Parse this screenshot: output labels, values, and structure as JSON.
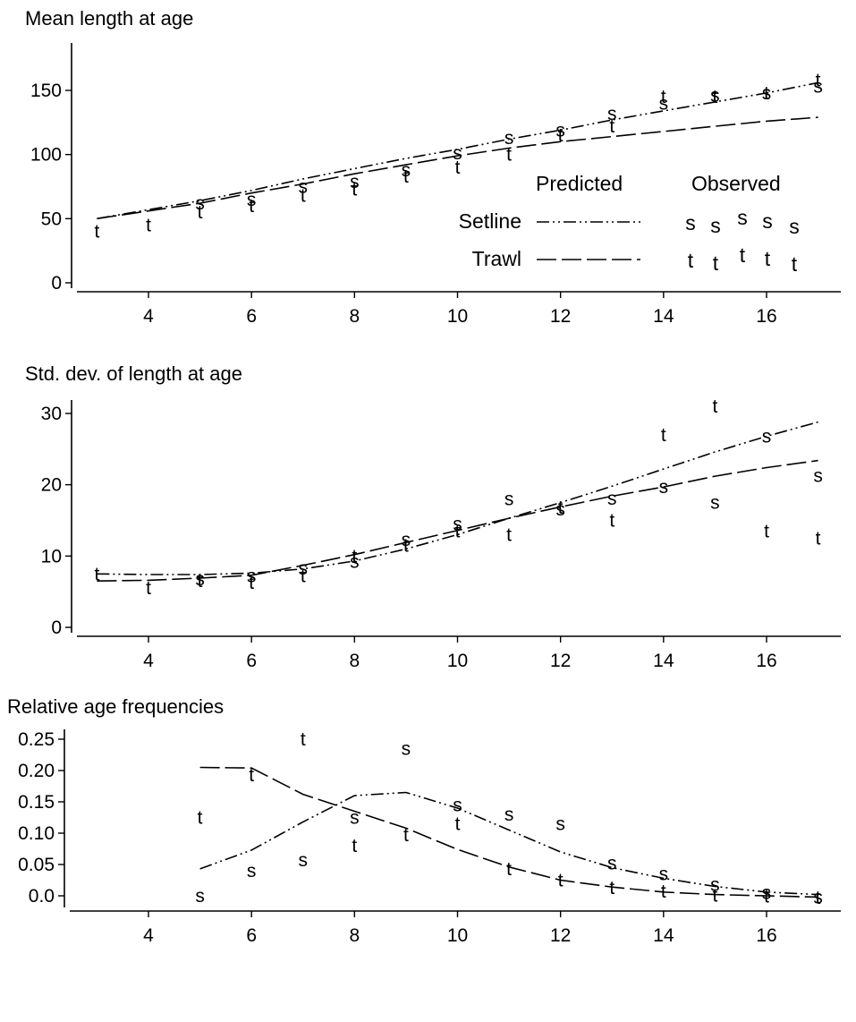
{
  "chart_data": [
    {
      "type": "line",
      "title": "Mean length at age",
      "xlabel": "",
      "ylabel": "",
      "xlim": [
        2.8,
        17.4
      ],
      "ylim": [
        0,
        180
      ],
      "xticks": [
        4,
        6,
        8,
        10,
        12,
        14,
        16
      ],
      "yticks": [
        0,
        50,
        100,
        150
      ],
      "grid": false,
      "legend": {
        "placement": "inside-right",
        "predicted_header": "Predicted",
        "observed_header": "Observed",
        "rows": [
          {
            "name": "Setline",
            "marker": "s"
          },
          {
            "name": "Trawl",
            "marker": "t"
          }
        ]
      },
      "series": [
        {
          "name": "Setline",
          "kind": "predicted",
          "style": "dash-dot",
          "x": [
            3,
            4,
            5,
            6,
            7,
            8,
            9,
            10,
            11,
            12,
            13,
            14,
            15,
            16,
            17
          ],
          "values": [
            50,
            57,
            64,
            72,
            81,
            89,
            97,
            104,
            112,
            119,
            127,
            134,
            141,
            148,
            156
          ]
        },
        {
          "name": "Trawl",
          "kind": "predicted",
          "style": "long-dash",
          "x": [
            3,
            4,
            5,
            6,
            7,
            8,
            9,
            10,
            11,
            12,
            13,
            14,
            15,
            16,
            17
          ],
          "values": [
            50,
            56,
            62,
            70,
            77,
            85,
            92,
            99,
            105,
            110,
            114,
            118,
            122,
            126,
            129
          ]
        },
        {
          "name": "Setline",
          "kind": "observed",
          "marker": "s",
          "x": [
            5,
            6,
            7,
            8,
            9,
            10,
            11,
            12,
            13,
            14,
            15,
            16,
            17
          ],
          "values": [
            62,
            65,
            75,
            79,
            88,
            101,
            113,
            119,
            132,
            140,
            146,
            148,
            153
          ]
        },
        {
          "name": "Trawl",
          "kind": "observed",
          "marker": "t",
          "x": [
            3,
            4,
            5,
            6,
            7,
            8,
            9,
            10,
            11,
            12,
            13,
            14,
            15,
            16,
            17
          ],
          "values": [
            40,
            45,
            55,
            60,
            68,
            73,
            83,
            90,
            100,
            115,
            122,
            145,
            145,
            148,
            158
          ]
        }
      ]
    },
    {
      "type": "line",
      "title": "Std. dev. of length at age",
      "xlabel": "",
      "ylabel": "",
      "xlim": [
        2.8,
        17.4
      ],
      "ylim": [
        0,
        32
      ],
      "xticks": [
        4,
        6,
        8,
        10,
        12,
        14,
        16
      ],
      "yticks": [
        0,
        10,
        20,
        30
      ],
      "grid": false,
      "series": [
        {
          "name": "Setline",
          "kind": "predicted",
          "style": "dash-dot",
          "x": [
            3,
            4,
            5,
            6,
            7,
            8,
            9,
            10,
            11,
            12,
            13,
            14,
            15,
            16,
            17
          ],
          "values": [
            7.5,
            7.4,
            7.4,
            7.6,
            8.2,
            9.3,
            11.0,
            13.0,
            15.3,
            17.5,
            19.8,
            22.2,
            24.6,
            26.8,
            28.8
          ]
        },
        {
          "name": "Trawl",
          "kind": "predicted",
          "style": "long-dash",
          "x": [
            3,
            4,
            5,
            6,
            7,
            8,
            9,
            10,
            11,
            12,
            13,
            14,
            15,
            16,
            17
          ],
          "values": [
            6.5,
            6.6,
            6.9,
            7.3,
            8.7,
            10.2,
            11.9,
            13.6,
            15.3,
            16.9,
            18.4,
            19.7,
            21.2,
            22.4,
            23.4
          ]
        },
        {
          "name": "Setline",
          "kind": "observed",
          "marker": "s",
          "x": [
            5,
            6,
            7,
            8,
            9,
            10,
            11,
            12,
            13,
            14,
            15,
            16,
            17
          ],
          "values": [
            6.8,
            7.2,
            8.3,
            9.2,
            12.3,
            14.5,
            18,
            16.6,
            18.1,
            19.7,
            17.5,
            26.8,
            21.3
          ]
        },
        {
          "name": "Trawl",
          "kind": "observed",
          "marker": "t",
          "x": [
            3,
            4,
            5,
            6,
            7,
            8,
            9,
            10,
            11,
            12,
            13,
            14,
            15,
            16,
            17
          ],
          "values": [
            7.5,
            5.5,
            6.5,
            6.3,
            7.2,
            10,
            11.5,
            13.5,
            13,
            16.8,
            15,
            27,
            31,
            13.5,
            12.5
          ]
        }
      ]
    },
    {
      "type": "line",
      "title": "Relative age frequencies",
      "xlabel": "",
      "ylabel": "",
      "xlim": [
        2.8,
        17.4
      ],
      "ylim": [
        -0.01,
        0.26
      ],
      "xticks": [
        4,
        6,
        8,
        10,
        12,
        14,
        16
      ],
      "yticks": [
        0.0,
        0.05,
        0.1,
        0.15,
        0.2,
        0.25
      ],
      "ytick_labels": [
        "0.0",
        "0.05",
        "0.10",
        "0.15",
        "0.20",
        "0.25"
      ],
      "grid": false,
      "series": [
        {
          "name": "Setline",
          "kind": "predicted",
          "style": "dash-dot",
          "x": [
            5,
            6,
            7,
            8,
            9,
            10,
            11,
            12,
            13,
            14,
            15,
            16,
            17
          ],
          "values": [
            0.043,
            0.073,
            0.118,
            0.16,
            0.165,
            0.14,
            0.105,
            0.07,
            0.045,
            0.028,
            0.015,
            0.006,
            0.002
          ]
        },
        {
          "name": "Trawl",
          "kind": "predicted",
          "style": "long-dash",
          "x": [
            5,
            6,
            7,
            8,
            9,
            10,
            11,
            12,
            13,
            14,
            15,
            16,
            17
          ],
          "values": [
            0.205,
            0.204,
            0.162,
            0.135,
            0.108,
            0.074,
            0.046,
            0.025,
            0.014,
            0.006,
            0.002,
            0.0,
            -0.002
          ]
        },
        {
          "name": "Setline",
          "kind": "observed",
          "marker": "s",
          "x": [
            5,
            6,
            7,
            8,
            9,
            10,
            11,
            12,
            13,
            14,
            15,
            16,
            17
          ],
          "values": [
            0.0,
            0.04,
            0.057,
            0.125,
            0.235,
            0.145,
            0.13,
            0.115,
            0.052,
            0.035,
            0.018,
            0.005,
            -0.002
          ]
        },
        {
          "name": "Trawl",
          "kind": "observed",
          "marker": "t",
          "x": [
            5,
            6,
            7,
            8,
            9,
            10,
            11,
            12,
            13,
            14,
            15,
            16,
            17
          ],
          "values": [
            0.125,
            0.193,
            0.25,
            0.08,
            0.097,
            0.115,
            0.043,
            0.025,
            0.013,
            0.007,
            0.001,
            -0.001,
            -0.003
          ]
        }
      ]
    }
  ]
}
